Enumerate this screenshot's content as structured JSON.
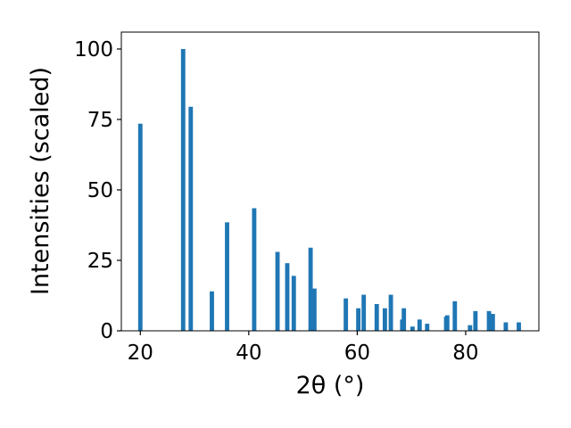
{
  "chart_data": {
    "type": "bar",
    "title": "",
    "xlabel": "2θ (°)",
    "ylabel": "Intensities (scaled)",
    "xlim": [
      16.5,
      93.5
    ],
    "ylim": [
      0,
      106
    ],
    "xticks": [
      20,
      40,
      60,
      80
    ],
    "yticks": [
      0,
      25,
      50,
      75,
      100
    ],
    "grid": false,
    "bar_color": "#1f77b4",
    "bar_width": 0.8,
    "series": [
      {
        "x": [
          20.0,
          27.9,
          29.3,
          33.2,
          36.0,
          41.0,
          45.3,
          47.1,
          48.3,
          51.4,
          52.1,
          57.9,
          60.2,
          61.2,
          63.6,
          65.1,
          66.2,
          68.3,
          68.6,
          70.2,
          71.5,
          72.9,
          76.4,
          76.6,
          78.0,
          80.8,
          81.8,
          84.3,
          85.0,
          87.4,
          89.8
        ],
        "y": [
          73.5,
          100.0,
          79.5,
          14.0,
          38.5,
          43.5,
          28.0,
          24.0,
          19.5,
          29.5,
          15.0,
          11.5,
          8.0,
          12.8,
          9.5,
          8.0,
          12.8,
          4.0,
          8.0,
          1.5,
          4.0,
          2.5,
          5.0,
          5.5,
          10.5,
          2.0,
          7.0,
          7.0,
          6.0,
          3.0,
          3.0
        ]
      }
    ]
  }
}
